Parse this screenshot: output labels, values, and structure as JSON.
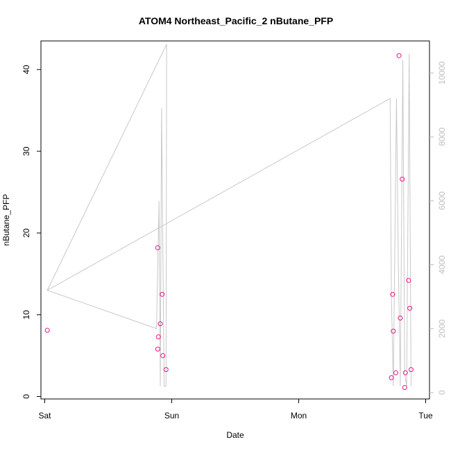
{
  "chart_data": {
    "type": "scatter",
    "title": "ATOM4 Northeast_Pacific_2 nButane_PFP",
    "xlabel": "Date",
    "ylabel": "nButane_PFP",
    "x_ticks": [
      {
        "day": 0,
        "label": "Sat"
      },
      {
        "day": 1,
        "label": "Sun"
      },
      {
        "day": 2,
        "label": "Mon"
      },
      {
        "day": 3,
        "label": "Tue"
      }
    ],
    "xlim": [
      -0.03,
      3.03
    ],
    "ylim": [
      -0.3,
      43.5
    ],
    "y_ticks": [
      0,
      10,
      20,
      30,
      40
    ],
    "y2lim": [
      -200,
      11000
    ],
    "y2_ticks": [
      0,
      2000,
      4000,
      6000,
      8000,
      10000
    ],
    "grid": false,
    "series": [
      {
        "kind": "points",
        "color": "#ee1188",
        "points": [
          {
            "day": 0.02,
            "value": 8.1
          },
          {
            "day": 0.89,
            "value": 18.2
          },
          {
            "day": 0.89,
            "value": 5.8
          },
          {
            "day": 0.895,
            "value": 7.3
          },
          {
            "day": 0.91,
            "value": 8.9
          },
          {
            "day": 0.925,
            "value": 12.5
          },
          {
            "day": 0.93,
            "value": 5.0
          },
          {
            "day": 0.955,
            "value": 3.3
          },
          {
            "day": 2.73,
            "value": 2.3
          },
          {
            "day": 2.74,
            "value": 12.5
          },
          {
            "day": 2.745,
            "value": 8.0
          },
          {
            "day": 2.765,
            "value": 2.9
          },
          {
            "day": 2.79,
            "value": 41.7
          },
          {
            "day": 2.8,
            "value": 9.6
          },
          {
            "day": 2.815,
            "value": 26.6
          },
          {
            "day": 2.835,
            "value": 1.1
          },
          {
            "day": 2.84,
            "value": 2.9
          },
          {
            "day": 2.865,
            "value": 14.2
          },
          {
            "day": 2.875,
            "value": 10.8
          },
          {
            "day": 2.885,
            "value": 3.3
          }
        ]
      },
      {
        "kind": "line",
        "axis": "right",
        "color": "#c8c8c8",
        "points": [
          {
            "day": 0.02,
            "value": 3200
          },
          {
            "day": 0.96,
            "value": 10900
          },
          {
            "day": 0.955,
            "value": 200
          },
          {
            "day": 0.94,
            "value": 200
          },
          {
            "day": 0.92,
            "value": 8900
          },
          {
            "day": 0.91,
            "value": 200
          },
          {
            "day": 0.9,
            "value": 6000
          },
          {
            "day": 0.88,
            "value": 2000
          },
          {
            "day": 0.02,
            "value": 3200
          },
          {
            "day": 2.72,
            "value": 9200
          },
          {
            "day": 2.73,
            "value": 3000
          },
          {
            "day": 2.745,
            "value": 200
          },
          {
            "day": 2.77,
            "value": 9200
          },
          {
            "day": 2.785,
            "value": 4000
          },
          {
            "day": 2.8,
            "value": 200
          },
          {
            "day": 2.82,
            "value": 10400
          },
          {
            "day": 2.835,
            "value": 600
          },
          {
            "day": 2.85,
            "value": 200
          },
          {
            "day": 2.87,
            "value": 10600
          },
          {
            "day": 2.885,
            "value": 200
          }
        ]
      }
    ]
  }
}
